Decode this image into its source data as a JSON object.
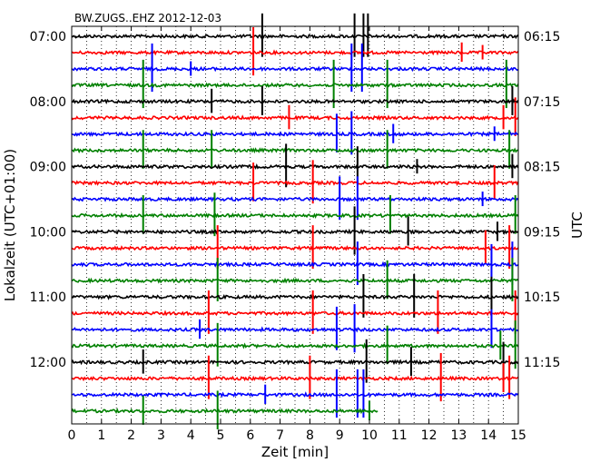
{
  "chart_data": {
    "type": "line",
    "title": "BW.ZUGS..EHZ 2012-12-03",
    "xlabel": "Zeit  [min]",
    "ylabel_left": "Lokalzeit (UTC+01:00)",
    "ylabel_right": "UTC",
    "xlim": [
      0,
      15
    ],
    "x_ticks": [
      "0",
      "1",
      "2",
      "3",
      "4",
      "5",
      "6",
      "7",
      "8",
      "9",
      "10",
      "11",
      "12",
      "13",
      "14",
      "15"
    ],
    "left_ticks": [
      {
        "label": "07:00",
        "row": 0
      },
      {
        "label": "08:00",
        "row": 4
      },
      {
        "label": "09:00",
        "row": 8
      },
      {
        "label": "10:00",
        "row": 12
      },
      {
        "label": "11:00",
        "row": 16
      },
      {
        "label": "12:00",
        "row": 20
      }
    ],
    "right_ticks": [
      {
        "label": "06:15",
        "row": 0
      },
      {
        "label": "07:15",
        "row": 4
      },
      {
        "label": "08:15",
        "row": 8
      },
      {
        "label": "09:15",
        "row": 12
      },
      {
        "label": "10:15",
        "row": 16
      },
      {
        "label": "11:15",
        "row": 20
      }
    ],
    "grid": "vertical dotted every 0.5 min",
    "trace_colors": [
      "#000000",
      "#ff0000",
      "#0000ff",
      "#008000"
    ],
    "traces": [
      {
        "row": 0,
        "color": "#000000",
        "end": 15,
        "spikes": [
          [
            6.4,
            0.9
          ],
          [
            9.5,
            0.9
          ],
          [
            9.8,
            0.9
          ],
          [
            9.95,
            0.9
          ]
        ]
      },
      {
        "row": 1,
        "color": "#ff0000",
        "end": 15,
        "spikes": [
          [
            6.1,
            1.0
          ],
          [
            13.1,
            0.4
          ],
          [
            13.8,
            0.3
          ]
        ]
      },
      {
        "row": 2,
        "color": "#0000ff",
        "end": 15,
        "spikes": [
          [
            2.7,
            1.0
          ],
          [
            4.0,
            0.3
          ],
          [
            9.4,
            1.0
          ],
          [
            9.75,
            1.0
          ]
        ]
      },
      {
        "row": 3,
        "color": "#008000",
        "end": 15,
        "spikes": [
          [
            2.4,
            1.0
          ],
          [
            8.8,
            1.0
          ],
          [
            10.6,
            1.0
          ],
          [
            14.6,
            1.0
          ]
        ]
      },
      {
        "row": 4,
        "color": "#000000",
        "end": 15,
        "spikes": [
          [
            4.7,
            0.5
          ],
          [
            6.4,
            0.6
          ],
          [
            14.8,
            0.6
          ]
        ]
      },
      {
        "row": 5,
        "color": "#ff0000",
        "end": 15,
        "spikes": [
          [
            7.3,
            0.5
          ],
          [
            14.5,
            0.5
          ],
          [
            14.9,
            0.8
          ]
        ]
      },
      {
        "row": 6,
        "color": "#0000ff",
        "end": 15,
        "spikes": [
          [
            8.9,
            0.8
          ],
          [
            9.4,
            0.9
          ],
          [
            10.8,
            0.4
          ],
          [
            14.2,
            0.3
          ]
        ]
      },
      {
        "row": 7,
        "color": "#008000",
        "end": 15,
        "spikes": [
          [
            2.4,
            0.8
          ],
          [
            4.7,
            0.8
          ],
          [
            10.6,
            0.8
          ],
          [
            14.7,
            0.8
          ]
        ]
      },
      {
        "row": 8,
        "color": "#000000",
        "end": 15,
        "spikes": [
          [
            7.2,
            0.9
          ],
          [
            9.6,
            0.8
          ],
          [
            11.6,
            0.3
          ],
          [
            14.8,
            0.5
          ]
        ]
      },
      {
        "row": 9,
        "color": "#ff0000",
        "end": 15,
        "spikes": [
          [
            6.1,
            0.8
          ],
          [
            8.1,
            0.9
          ],
          [
            14.2,
            0.7
          ]
        ]
      },
      {
        "row": 10,
        "color": "#0000ff",
        "end": 15,
        "spikes": [
          [
            9.0,
            0.9
          ],
          [
            9.6,
            0.9
          ],
          [
            13.8,
            0.3
          ]
        ]
      },
      {
        "row": 11,
        "color": "#008000",
        "end": 15,
        "spikes": [
          [
            2.4,
            0.8
          ],
          [
            4.8,
            0.9
          ],
          [
            10.7,
            0.8
          ],
          [
            14.9,
            0.8
          ]
        ]
      },
      {
        "row": 12,
        "color": "#000000",
        "end": 15,
        "spikes": [
          [
            9.5,
            1.0
          ],
          [
            11.3,
            0.6
          ],
          [
            14.3,
            0.4
          ]
        ]
      },
      {
        "row": 13,
        "color": "#ff0000",
        "end": 15,
        "spikes": [
          [
            4.9,
            0.9
          ],
          [
            8.1,
            0.9
          ],
          [
            13.9,
            0.7
          ],
          [
            14.7,
            0.9
          ]
        ]
      },
      {
        "row": 14,
        "color": "#0000ff",
        "end": 15,
        "spikes": [
          [
            9.6,
            0.9
          ],
          [
            14.1,
            0.8
          ],
          [
            14.8,
            0.9
          ]
        ]
      },
      {
        "row": 15,
        "color": "#008000",
        "end": 15,
        "spikes": [
          [
            4.9,
            0.9
          ],
          [
            10.6,
            0.8
          ],
          [
            14.8,
            0.9
          ]
        ]
      },
      {
        "row": 16,
        "color": "#000000",
        "end": 15,
        "spikes": [
          [
            9.8,
            0.9
          ],
          [
            11.5,
            0.9
          ],
          [
            14.1,
            0.8
          ]
        ]
      },
      {
        "row": 17,
        "color": "#ff0000",
        "end": 15,
        "spikes": [
          [
            4.6,
            0.9
          ],
          [
            8.1,
            0.9
          ],
          [
            12.3,
            0.9
          ],
          [
            14.9,
            0.9
          ]
        ]
      },
      {
        "row": 18,
        "color": "#0000ff",
        "end": 15,
        "spikes": [
          [
            4.3,
            0.4
          ],
          [
            8.9,
            0.9
          ],
          [
            9.5,
            1.0
          ],
          [
            14.1,
            0.8
          ]
        ]
      },
      {
        "row": 19,
        "color": "#008000",
        "end": 15,
        "spikes": [
          [
            4.9,
            0.9
          ],
          [
            10.6,
            0.8
          ],
          [
            14.4,
            0.6
          ],
          [
            14.9,
            1.0
          ]
        ]
      },
      {
        "row": 20,
        "color": "#000000",
        "end": 15,
        "spikes": [
          [
            2.4,
            0.5
          ],
          [
            9.9,
            0.9
          ],
          [
            11.4,
            0.6
          ],
          [
            14.5,
            0.8
          ]
        ]
      },
      {
        "row": 21,
        "color": "#ff0000",
        "end": 15,
        "spikes": [
          [
            4.6,
            0.9
          ],
          [
            8.0,
            0.9
          ],
          [
            12.4,
            1.0
          ],
          [
            14.5,
            0.6
          ],
          [
            14.7,
            0.9
          ]
        ]
      },
      {
        "row": 22,
        "color": "#0000ff",
        "end": 15,
        "spikes": [
          [
            6.5,
            0.4
          ],
          [
            8.9,
            1.0
          ],
          [
            9.6,
            1.0
          ],
          [
            9.8,
            1.0
          ]
        ]
      },
      {
        "row": 23,
        "color": "#008000",
        "end": 10.3,
        "spikes": [
          [
            2.4,
            0.6
          ],
          [
            4.9,
            0.8
          ],
          [
            10.0,
            0.4
          ]
        ]
      }
    ]
  }
}
